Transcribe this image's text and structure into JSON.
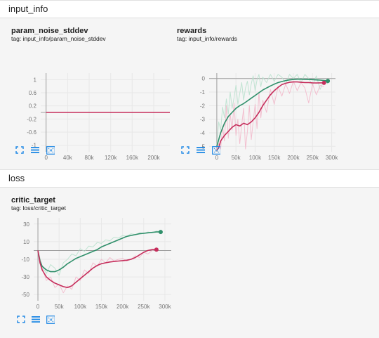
{
  "sections": [
    {
      "title": "input_info"
    },
    {
      "title": "loss"
    }
  ],
  "colors": {
    "teal": "#2f8f6a",
    "teal_light": "#b7e0cc",
    "pink": "#c62e5c",
    "pink_light": "#f2b6c9",
    "grid": "#e8e8e8",
    "axis": "#9e9e9e",
    "button": "#1e88e5"
  },
  "buttons": {
    "expand_icon": "expand-icon",
    "log_scale_icon": "log-scale-icon",
    "fit_domain_icon": "fit-domain-icon"
  },
  "cards": [
    {
      "title": "param_noise_stddev",
      "tag": "tag: input_info/param_noise_stddev",
      "chart_data": {
        "type": "line",
        "xlim": [
          -10000,
          230000
        ],
        "ylim": [
          -1.2,
          1.2
        ],
        "xticks": [
          0,
          40000,
          80000,
          120000,
          160000,
          200000
        ],
        "xtick_labels": [
          "0",
          "40k",
          "80k",
          "120k",
          "160k",
          "200k"
        ],
        "yticks": [
          1,
          0.6,
          0.2,
          -0.2,
          -0.6,
          -1
        ],
        "ytick_labels": [
          "1",
          "0.6",
          "0.2",
          "-0.2",
          "-0.6",
          "-1"
        ],
        "grid": true,
        "series": [
          {
            "color_key": "pink",
            "raw": false,
            "x": [
              0,
              230000
            ],
            "y": [
              0,
              0
            ]
          }
        ]
      }
    },
    {
      "title": "rewards",
      "tag": "tag: input_info/rewards",
      "chart_data": {
        "type": "line",
        "xlim": [
          -20000,
          310000
        ],
        "ylim": [
          -5.4,
          0.4
        ],
        "xticks": [
          0,
          50000,
          100000,
          150000,
          200000,
          250000,
          300000
        ],
        "xtick_labels": [
          "0",
          "50k",
          "100k",
          "150k",
          "200k",
          "250k",
          "300k"
        ],
        "yticks": [
          0,
          -1,
          -2,
          -3,
          -4,
          -5
        ],
        "ytick_labels": [
          "0",
          "-1",
          "-2",
          "-3",
          "-4",
          "-5"
        ],
        "grid": true,
        "series": [
          {
            "color_key": "teal_light",
            "raw": true,
            "x": [
              0,
              5000,
              10000,
              15000,
              20000,
              25000,
              30000,
              35000,
              40000,
              45000,
              50000,
              55000,
              60000,
              65000,
              70000,
              75000,
              80000,
              85000,
              90000,
              95000,
              100000,
              105000,
              110000,
              115000,
              120000,
              130000,
              140000,
              150000,
              160000,
              170000,
              180000,
              190000,
              200000,
              210000,
              220000,
              230000,
              240000,
              250000,
              260000,
              270000,
              280000,
              290000
            ],
            "y": [
              -5.0,
              -3.2,
              -3.8,
              -2.1,
              -2.9,
              -1.5,
              -2.6,
              -1.0,
              -2.2,
              -1.4,
              -0.5,
              -1.9,
              -1.1,
              -0.3,
              -1.6,
              -0.7,
              -0.2,
              -1.2,
              -0.4,
              0.2,
              -0.9,
              -0.1,
              0.3,
              -0.6,
              0.1,
              -0.3,
              0.3,
              -0.2,
              0.3,
              0.1,
              -0.4,
              0.3,
              0.0,
              0.3,
              -0.3,
              0.3,
              0.0,
              -0.5,
              0.2,
              -0.8,
              -0.1,
              -0.4
            ]
          },
          {
            "color_key": "pink_light",
            "raw": true,
            "x": [
              0,
              5000,
              10000,
              15000,
              20000,
              25000,
              30000,
              35000,
              40000,
              45000,
              50000,
              55000,
              60000,
              65000,
              70000,
              75000,
              80000,
              85000,
              90000,
              95000,
              100000,
              105000,
              110000,
              115000,
              120000,
              130000,
              140000,
              150000,
              160000,
              170000,
              180000,
              190000,
              200000,
              210000,
              220000,
              230000,
              240000,
              250000,
              260000,
              270000,
              280000
            ],
            "y": [
              -5.2,
              -4.8,
              -5.2,
              -3.5,
              -4.6,
              -2.0,
              -4.4,
              -2.6,
              -3.8,
              -1.8,
              -4.2,
              -3.0,
              -4.8,
              -3.4,
              -2.2,
              -5.2,
              -3.9,
              -2.0,
              -4.5,
              -3.2,
              -1.9,
              -3.7,
              -1.0,
              -2.9,
              -1.6,
              -2.5,
              -0.8,
              -1.9,
              -0.6,
              -1.3,
              -0.4,
              -1.1,
              -0.2,
              -0.9,
              -0.3,
              -0.7,
              -1.8,
              -0.4,
              -1.2,
              -0.5,
              -0.6
            ]
          },
          {
            "color_key": "teal",
            "raw": false,
            "x": [
              0,
              10000,
              20000,
              30000,
              40000,
              50000,
              60000,
              70000,
              80000,
              90000,
              100000,
              110000,
              120000,
              130000,
              140000,
              150000,
              160000,
              170000,
              180000,
              190000,
              200000,
              210000,
              220000,
              230000,
              240000,
              250000,
              260000,
              270000,
              280000,
              290000
            ],
            "y": [
              -5.0,
              -4.0,
              -3.3,
              -2.8,
              -2.5,
              -2.2,
              -2.0,
              -1.85,
              -1.65,
              -1.45,
              -1.25,
              -1.05,
              -0.85,
              -0.7,
              -0.55,
              -0.42,
              -0.3,
              -0.22,
              -0.15,
              -0.1,
              -0.07,
              -0.05,
              -0.05,
              -0.06,
              -0.07,
              -0.08,
              -0.1,
              -0.12,
              -0.15,
              -0.18
            ]
          },
          {
            "color_key": "pink",
            "raw": false,
            "x": [
              0,
              5000,
              10000,
              20000,
              30000,
              40000,
              50000,
              60000,
              70000,
              80000,
              90000,
              100000,
              110000,
              120000,
              130000,
              140000,
              150000,
              160000,
              170000,
              180000,
              190000,
              200000,
              210000,
              220000,
              230000,
              240000,
              250000,
              260000,
              270000,
              280000
            ],
            "y": [
              -5.3,
              -5.1,
              -4.6,
              -4.2,
              -3.9,
              -3.6,
              -3.4,
              -3.5,
              -3.3,
              -3.4,
              -3.2,
              -2.9,
              -2.5,
              -2.0,
              -1.6,
              -1.2,
              -0.9,
              -0.65,
              -0.45,
              -0.35,
              -0.28,
              -0.25,
              -0.25,
              -0.28,
              -0.3,
              -0.3,
              -0.32,
              -0.33,
              -0.32,
              -0.32
            ]
          }
        ]
      }
    },
    {
      "title": "critic_target",
      "tag": "tag: loss/critic_target",
      "chart_data": {
        "type": "line",
        "xlim": [
          -10000,
          315000
        ],
        "ylim": [
          -57,
          37
        ],
        "xticks": [
          0,
          50000,
          100000,
          150000,
          200000,
          250000,
          300000
        ],
        "xtick_labels": [
          "0",
          "50k",
          "100k",
          "150k",
          "200k",
          "250k",
          "300k"
        ],
        "yticks": [
          30,
          10,
          -10,
          -30,
          -50
        ],
        "ytick_labels": [
          "30",
          "10",
          "-10",
          "-30",
          "-50"
        ],
        "grid": true,
        "series": [
          {
            "color_key": "teal_light",
            "raw": true,
            "x": [
              0,
              10000,
              20000,
              30000,
              40000,
              50000,
              60000,
              70000,
              80000,
              90000,
              100000,
              110000,
              120000,
              130000,
              140000,
              150000,
              160000,
              170000,
              180000,
              190000,
              200000,
              210000,
              220000,
              230000,
              240000,
              250000,
              260000,
              270000,
              280000,
              290000
            ],
            "y": [
              0,
              -18,
              -26,
              -16,
              -20,
              -28,
              -14,
              -10,
              -4,
              -6,
              2,
              -1,
              5,
              4,
              9,
              8,
              12,
              11,
              15,
              14,
              17,
              16,
              19,
              18,
              20,
              19,
              21,
              20,
              22,
              21
            ]
          },
          {
            "color_key": "pink_light",
            "raw": true,
            "x": [
              0,
              10000,
              20000,
              30000,
              40000,
              50000,
              60000,
              70000,
              80000,
              90000,
              100000,
              110000,
              120000,
              130000,
              140000,
              150000,
              160000,
              170000,
              180000,
              190000,
              200000,
              210000,
              220000,
              230000,
              240000,
              250000,
              260000,
              270000,
              280000
            ],
            "y": [
              0,
              -20,
              -34,
              -30,
              -42,
              -38,
              -48,
              -40,
              -44,
              -30,
              -34,
              -22,
              -26,
              -14,
              -18,
              -10,
              -14,
              -8,
              -12,
              -10,
              -9,
              -12,
              -10,
              -6,
              -8,
              -2,
              -4,
              0,
              1
            ]
          },
          {
            "color_key": "teal",
            "raw": false,
            "x": [
              0,
              5000,
              10000,
              20000,
              30000,
              40000,
              50000,
              60000,
              70000,
              80000,
              90000,
              100000,
              110000,
              120000,
              130000,
              140000,
              150000,
              160000,
              170000,
              180000,
              190000,
              200000,
              210000,
              220000,
              230000,
              240000,
              250000,
              260000,
              270000,
              280000,
              290000
            ],
            "y": [
              0,
              -12,
              -18,
              -22,
              -24,
              -24,
              -22,
              -19,
              -15,
              -12,
              -9,
              -7,
              -5,
              -3,
              -1,
              1,
              4,
              6,
              8,
              10,
              12,
              14,
              16,
              17,
              18,
              19,
              19.5,
              20,
              20.5,
              21,
              21
            ]
          },
          {
            "color_key": "pink",
            "raw": false,
            "x": [
              0,
              5000,
              10000,
              20000,
              30000,
              40000,
              50000,
              60000,
              70000,
              80000,
              90000,
              100000,
              110000,
              120000,
              130000,
              140000,
              150000,
              160000,
              170000,
              180000,
              190000,
              200000,
              210000,
              220000,
              230000,
              240000,
              250000,
              260000,
              270000,
              280000
            ],
            "y": [
              0,
              -14,
              -22,
              -30,
              -34,
              -37,
              -39,
              -41,
              -42,
              -40,
              -36,
              -32,
              -28,
              -24,
              -20,
              -17,
              -15,
              -14,
              -13,
              -12.5,
              -12,
              -11.5,
              -11,
              -10,
              -8,
              -5,
              -2,
              0,
              1,
              1
            ]
          }
        ]
      }
    }
  ]
}
